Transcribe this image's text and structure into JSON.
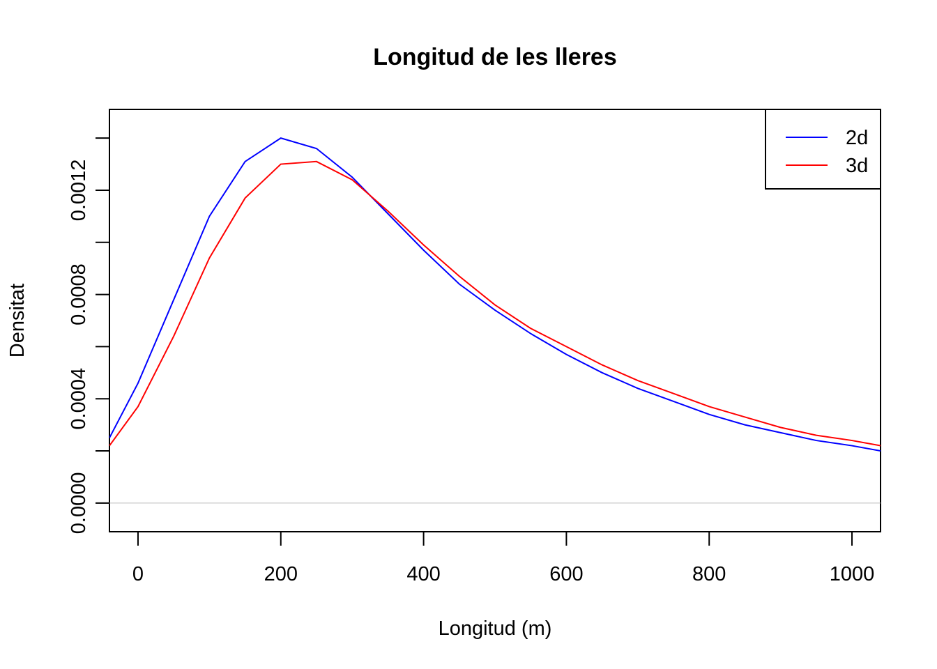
{
  "chart_data": {
    "type": "line",
    "title": "Longitud de les lleres",
    "xlabel": "Longitud (m)",
    "ylabel": "Densitat",
    "xlim": [
      -40,
      1040
    ],
    "ylim": [
      -0.00011,
      0.00151
    ],
    "x_ticks": [
      0,
      200,
      400,
      600,
      800,
      1000
    ],
    "x_tick_labels": [
      "0",
      "200",
      "400",
      "600",
      "800",
      "1000"
    ],
    "y_ticks": [
      0,
      0.0002,
      0.0004,
      0.0006,
      0.0008,
      0.001,
      0.0012,
      0.0014
    ],
    "y_tick_labels": [
      "0.0000",
      "",
      "0.0004",
      "",
      "0.0008",
      "",
      "0.0012",
      ""
    ],
    "zero_line": true,
    "grid": false,
    "legend_position": "top-right",
    "series": [
      {
        "name": "2d",
        "color": "#0000ff",
        "x": [
          -40,
          0,
          50,
          100,
          150,
          200,
          250,
          300,
          350,
          400,
          450,
          500,
          550,
          600,
          650,
          700,
          750,
          800,
          850,
          900,
          950,
          1000,
          1040
        ],
        "y": [
          0.00025,
          0.00046,
          0.00078,
          0.0011,
          0.00131,
          0.0014,
          0.00136,
          0.00125,
          0.00111,
          0.00097,
          0.00084,
          0.00074,
          0.00065,
          0.00057,
          0.0005,
          0.00044,
          0.00039,
          0.00034,
          0.0003,
          0.00027,
          0.00024,
          0.00022,
          0.0002
        ]
      },
      {
        "name": "3d",
        "color": "#ff0000",
        "x": [
          -40,
          0,
          50,
          100,
          150,
          200,
          250,
          300,
          350,
          400,
          450,
          500,
          550,
          600,
          650,
          700,
          750,
          800,
          850,
          900,
          950,
          1000,
          1040
        ],
        "y": [
          0.00022,
          0.00037,
          0.00064,
          0.00094,
          0.00117,
          0.0013,
          0.00131,
          0.00124,
          0.00112,
          0.00099,
          0.00087,
          0.00076,
          0.00067,
          0.0006,
          0.00053,
          0.00047,
          0.00042,
          0.00037,
          0.00033,
          0.00029,
          0.00026,
          0.00024,
          0.00022
        ]
      }
    ]
  }
}
